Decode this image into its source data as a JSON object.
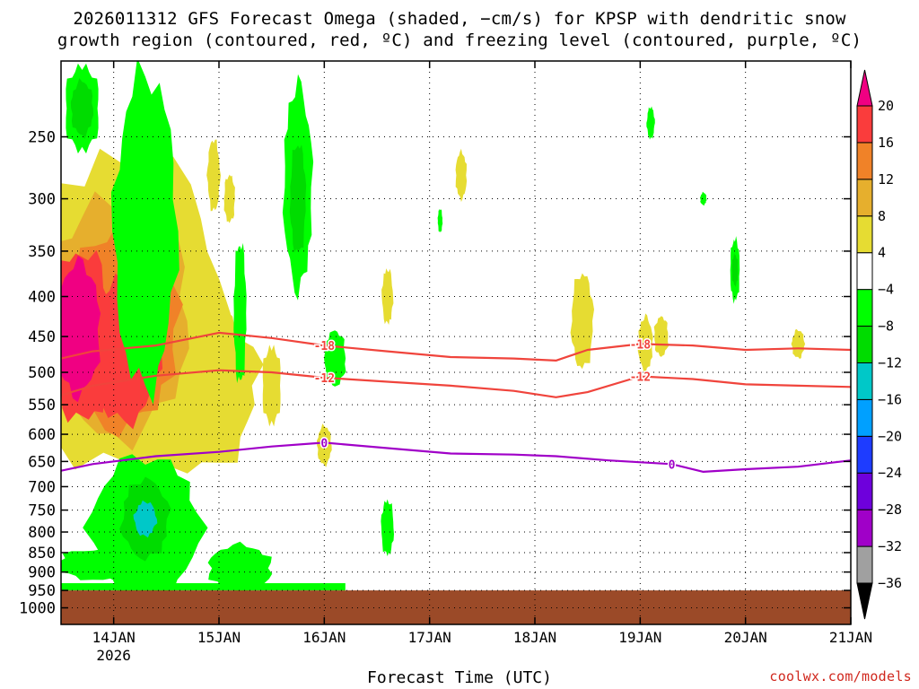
{
  "title_line1": "2026011312 GFS Forecast Omega (shaded, −cm/s) for KPSP with dendritic snow",
  "title_line2": "growth region (contoured, red, ºC) and freezing level (contoured, purple, ºC)",
  "xlabel": "Forecast Time (UTC)",
  "credit": "coolwx.com/models",
  "chart_data": {
    "type": "heatmap",
    "title": "2026011312 GFS Forecast Omega (shaded, −cm/s) for KPSP with dendritic snow growth region (contoured, red, ºC) and freezing level (contoured, purple, ºC)",
    "xlabel": "Forecast Time (UTC)",
    "ylabel": "",
    "x_ticks": [
      "14JAN",
      "15JAN",
      "16JAN",
      "17JAN",
      "18JAN",
      "19JAN",
      "20JAN",
      "21JAN"
    ],
    "x_tick_sublabel": "2026",
    "x_range_days": [
      13.5,
      21.0
    ],
    "y_ticks": [
      250,
      300,
      350,
      400,
      450,
      500,
      550,
      600,
      650,
      700,
      750,
      800,
      850,
      900,
      950,
      1000
    ],
    "y_axis_pressure_range_hPa": [
      200,
      1050
    ],
    "colorbar": {
      "levels": [
        -36,
        -32,
        -28,
        -24,
        -20,
        -16,
        -12,
        -8,
        -4,
        4,
        8,
        12,
        16,
        20
      ],
      "colors": [
        "#000000",
        "#a0a0a0",
        "#a000c8",
        "#6e00dc",
        "#1e3cff",
        "#00a0ff",
        "#00c8c8",
        "#00dc00",
        "#00ff00",
        "#ffffff",
        "#e6dc32",
        "#e6af2d",
        "#f08228",
        "#fa3c3c",
        "#f00082"
      ]
    },
    "contours": [
      {
        "label": "-18",
        "color": "#f0443c",
        "points": [
          [
            13.5,
            480
          ],
          [
            13.8,
            470
          ],
          [
            14.4,
            462
          ],
          [
            15.0,
            445
          ],
          [
            15.5,
            452
          ],
          [
            16.0,
            462
          ],
          [
            16.6,
            470
          ],
          [
            17.2,
            478
          ],
          [
            17.8,
            480
          ],
          [
            18.2,
            483
          ],
          [
            18.5,
            468
          ],
          [
            19.0,
            460
          ],
          [
            19.5,
            462
          ],
          [
            20.0,
            468
          ],
          [
            20.5,
            466
          ],
          [
            21.0,
            468
          ]
        ]
      },
      {
        "label": "-12",
        "color": "#f0443c",
        "points": [
          [
            13.5,
            535
          ],
          [
            13.8,
            520
          ],
          [
            14.4,
            505
          ],
          [
            15.0,
            497
          ],
          [
            15.5,
            500
          ],
          [
            16.0,
            508
          ],
          [
            16.6,
            514
          ],
          [
            17.2,
            520
          ],
          [
            17.8,
            528
          ],
          [
            18.2,
            538
          ],
          [
            18.5,
            530
          ],
          [
            19.0,
            506
          ],
          [
            19.5,
            510
          ],
          [
            20.0,
            518
          ],
          [
            20.5,
            520
          ],
          [
            21.0,
            522
          ]
        ]
      },
      {
        "label": "0",
        "color": "#a000c8",
        "points": [
          [
            13.5,
            668
          ],
          [
            13.8,
            655
          ],
          [
            14.4,
            640
          ],
          [
            15.0,
            632
          ],
          [
            15.5,
            622
          ],
          [
            16.0,
            615
          ],
          [
            16.6,
            625
          ],
          [
            17.2,
            635
          ],
          [
            17.8,
            637
          ],
          [
            18.2,
            640
          ],
          [
            18.7,
            648
          ],
          [
            19.3,
            655
          ],
          [
            19.6,
            670
          ],
          [
            20.0,
            665
          ],
          [
            20.5,
            660
          ],
          [
            21.0,
            648
          ]
        ]
      }
    ],
    "omega_regions": [
      {
        "x": [
          13.5,
          14.6
        ],
        "p": [
          380,
          660
        ],
        "value": 20
      },
      {
        "x": [
          13.5,
          14.3
        ],
        "p": [
          350,
          560
        ],
        "value": 12
      },
      {
        "x": [
          14.1,
          14.8
        ],
        "p": [
          720,
          820
        ],
        "value": -12
      },
      {
        "x": [
          15.5,
          16.1
        ],
        "p": [
          230,
          360
        ],
        "value": -8
      },
      {
        "x": [
          19.8,
          19.95
        ],
        "p": [
          330,
          390
        ],
        "value": -12
      }
    ],
    "ground_pressure_hPa": 950,
    "ground_color": "#9b4a28",
    "grid": true
  }
}
